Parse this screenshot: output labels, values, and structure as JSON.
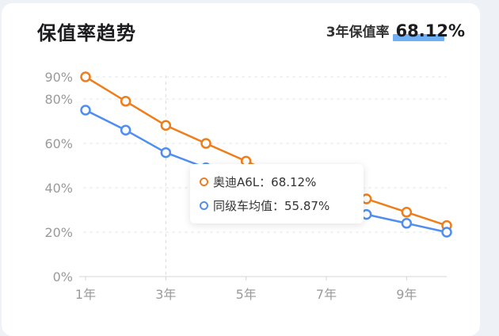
{
  "header": {
    "title": "保值率趋势",
    "rate_label": "3年保值率",
    "rate_value": "68.12%"
  },
  "colors": {
    "audi": "#ef7d1a",
    "avg": "#4f8ef0",
    "axis_text": "#9a9a9a",
    "grid": "#e3e6ec"
  },
  "tooltip": {
    "rows": [
      {
        "label": "奥迪A6L：68.12%"
      },
      {
        "label": "同级车均值：55.87%"
      }
    ]
  },
  "chart_data": {
    "type": "line",
    "x": [
      1,
      2,
      3,
      4,
      5,
      6,
      7,
      8,
      9,
      10
    ],
    "x_tick_labels": [
      "1年",
      "3年",
      "5年",
      "7年",
      "9年"
    ],
    "x_tick_values": [
      1,
      3,
      5,
      7,
      9
    ],
    "y_tick_labels": [
      "0%",
      "20%",
      "40%",
      "60%",
      "80%",
      "90%"
    ],
    "y_tick_values": [
      0,
      20,
      40,
      60,
      80,
      90
    ],
    "ylim": [
      0,
      90
    ],
    "grid": true,
    "highlight_x": 3,
    "series": [
      {
        "name": "奥迪A6L",
        "values": [
          90,
          79,
          68.12,
          60,
          52,
          44,
          39,
          35,
          29,
          23
        ]
      },
      {
        "name": "同级车均值",
        "values": [
          75,
          66,
          55.87,
          49,
          43,
          37,
          32,
          28,
          24,
          20
        ]
      }
    ]
  }
}
